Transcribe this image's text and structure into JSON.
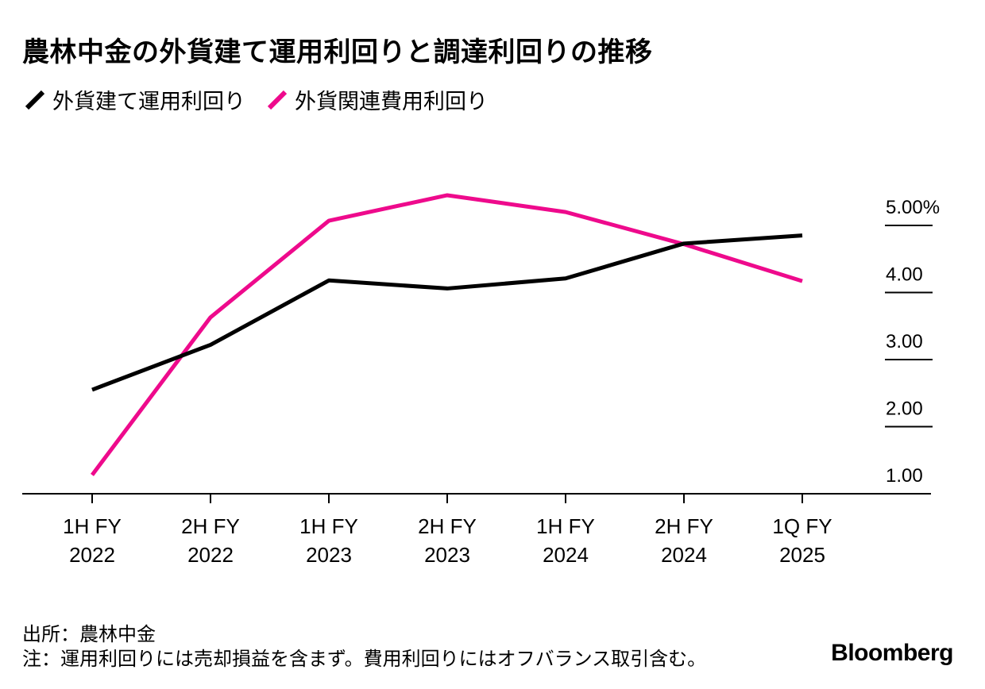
{
  "title": "農林中金の外貨建て運用利回りと調達利回りの推移",
  "legend": [
    {
      "label": "外貨建て運用利回り",
      "color": "#000000"
    },
    {
      "label": "外貨関連費用利回り",
      "color": "#ee0a8c"
    }
  ],
  "footer": {
    "source": "出所：農林中金",
    "note": "注：運用利回りには売却損益を含まず。費用利回りにはオフバランス取引含む。"
  },
  "brand": "Bloomberg",
  "chart_data": {
    "type": "line",
    "title": "農林中金の外貨建て運用利回りと調達利回りの推移",
    "categories": [
      [
        "1H FY",
        "2022"
      ],
      [
        "2H FY",
        "2022"
      ],
      [
        "1H FY",
        "2023"
      ],
      [
        "2H FY",
        "2023"
      ],
      [
        "1H FY",
        "2024"
      ],
      [
        "2H FY",
        "2024"
      ],
      [
        "1Q FY",
        "2025"
      ]
    ],
    "series": [
      {
        "name": "外貨建て運用利回り",
        "color": "#000000",
        "values": [
          2.55,
          3.22,
          4.18,
          4.06,
          4.21,
          4.73,
          4.85
        ]
      },
      {
        "name": "外貨関連費用利回り",
        "color": "#ee0a8c",
        "values": [
          1.28,
          3.63,
          5.07,
          5.45,
          5.2,
          4.72,
          4.17
        ]
      }
    ],
    "y_ticks": [
      {
        "value": 1,
        "label": "1.00"
      },
      {
        "value": 2,
        "label": "2.00"
      },
      {
        "value": 3,
        "label": "3.00"
      },
      {
        "value": 4,
        "label": "4.00"
      },
      {
        "value": 5,
        "label": "5.00%"
      }
    ],
    "ylim": [
      1,
      5
    ],
    "y_axis_position": "right",
    "grid": false,
    "legend_position": "top-left",
    "xlabel": "",
    "ylabel": ""
  }
}
